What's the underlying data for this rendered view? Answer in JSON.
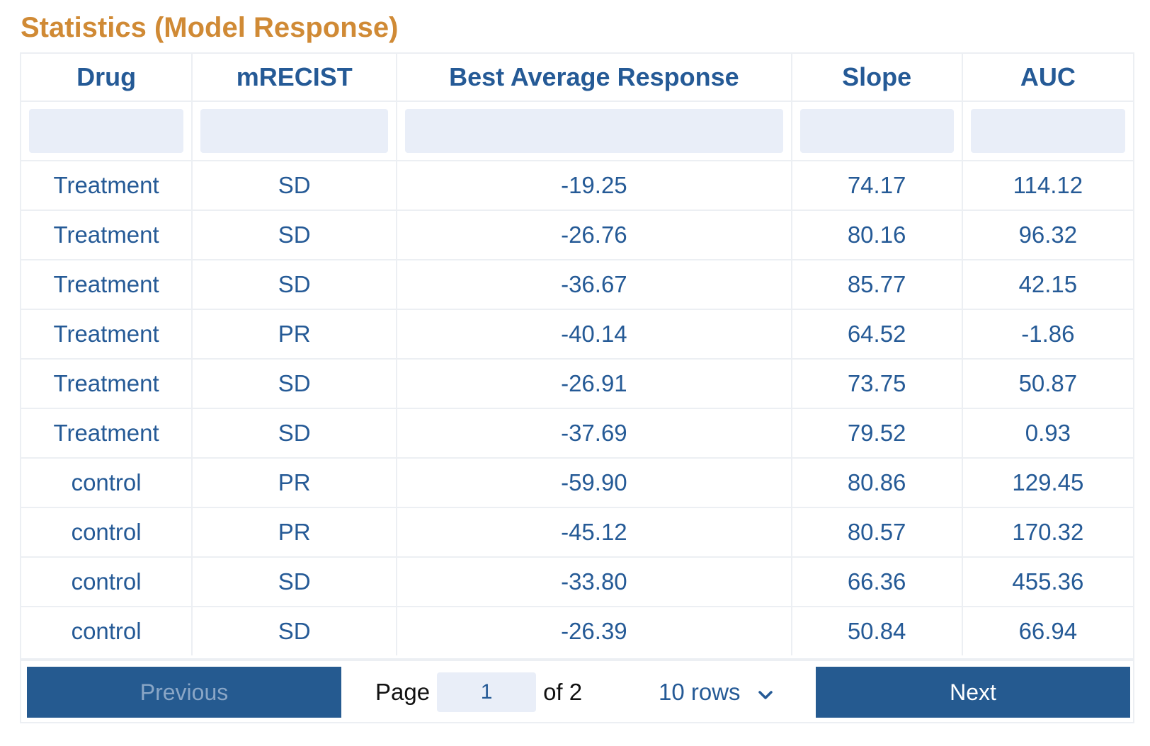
{
  "title": "Statistics (Model Response)",
  "columns": [
    "Drug",
    "mRECIST",
    "Best Average Response",
    "Slope",
    "AUC"
  ],
  "rows": [
    [
      "Treatment",
      "SD",
      "-19.25",
      "74.17",
      "114.12"
    ],
    [
      "Treatment",
      "SD",
      "-26.76",
      "80.16",
      "96.32"
    ],
    [
      "Treatment",
      "SD",
      "-36.67",
      "85.77",
      "42.15"
    ],
    [
      "Treatment",
      "PR",
      "-40.14",
      "64.52",
      "-1.86"
    ],
    [
      "Treatment",
      "SD",
      "-26.91",
      "73.75",
      "50.87"
    ],
    [
      "Treatment",
      "SD",
      "-37.69",
      "79.52",
      "0.93"
    ],
    [
      "control",
      "PR",
      "-59.90",
      "80.86",
      "129.45"
    ],
    [
      "control",
      "PR",
      "-45.12",
      "80.57",
      "170.32"
    ],
    [
      "control",
      "SD",
      "-33.80",
      "66.36",
      "455.36"
    ],
    [
      "control",
      "SD",
      "-26.39",
      "50.84",
      "66.94"
    ]
  ],
  "pagination": {
    "previous_label": "Previous",
    "next_label": "Next",
    "page_label": "Page",
    "page_value": "1",
    "of_label": "of 2",
    "rows_label": "10 rows"
  },
  "colors": {
    "title": "#d08a35",
    "text": "#255a96",
    "button": "#255a90",
    "filter_bg": "#e9eef8"
  }
}
